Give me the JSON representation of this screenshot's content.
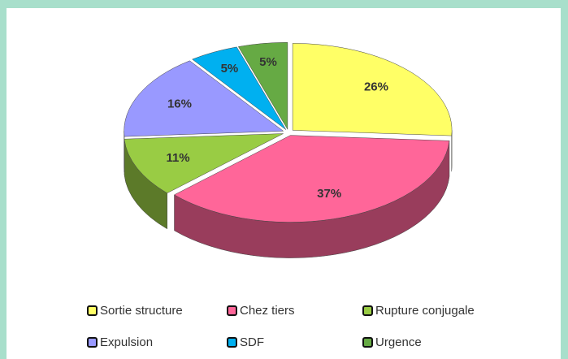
{
  "chart_data": {
    "type": "pie",
    "categories": [
      "Sortie structure",
      "Chez tiers",
      "Rupture conjugale",
      "Expulsion",
      "SDF",
      "Urgence"
    ],
    "values": [
      26,
      37,
      11,
      16,
      5,
      5
    ],
    "value_labels": [
      "26%",
      "37%",
      "11%",
      "16%",
      "5%",
      "5%"
    ],
    "colors": [
      "#ffff66",
      "#ff6699",
      "#99cc44",
      "#9999ff",
      "#00b0f0",
      "#66aa44"
    ]
  }
}
